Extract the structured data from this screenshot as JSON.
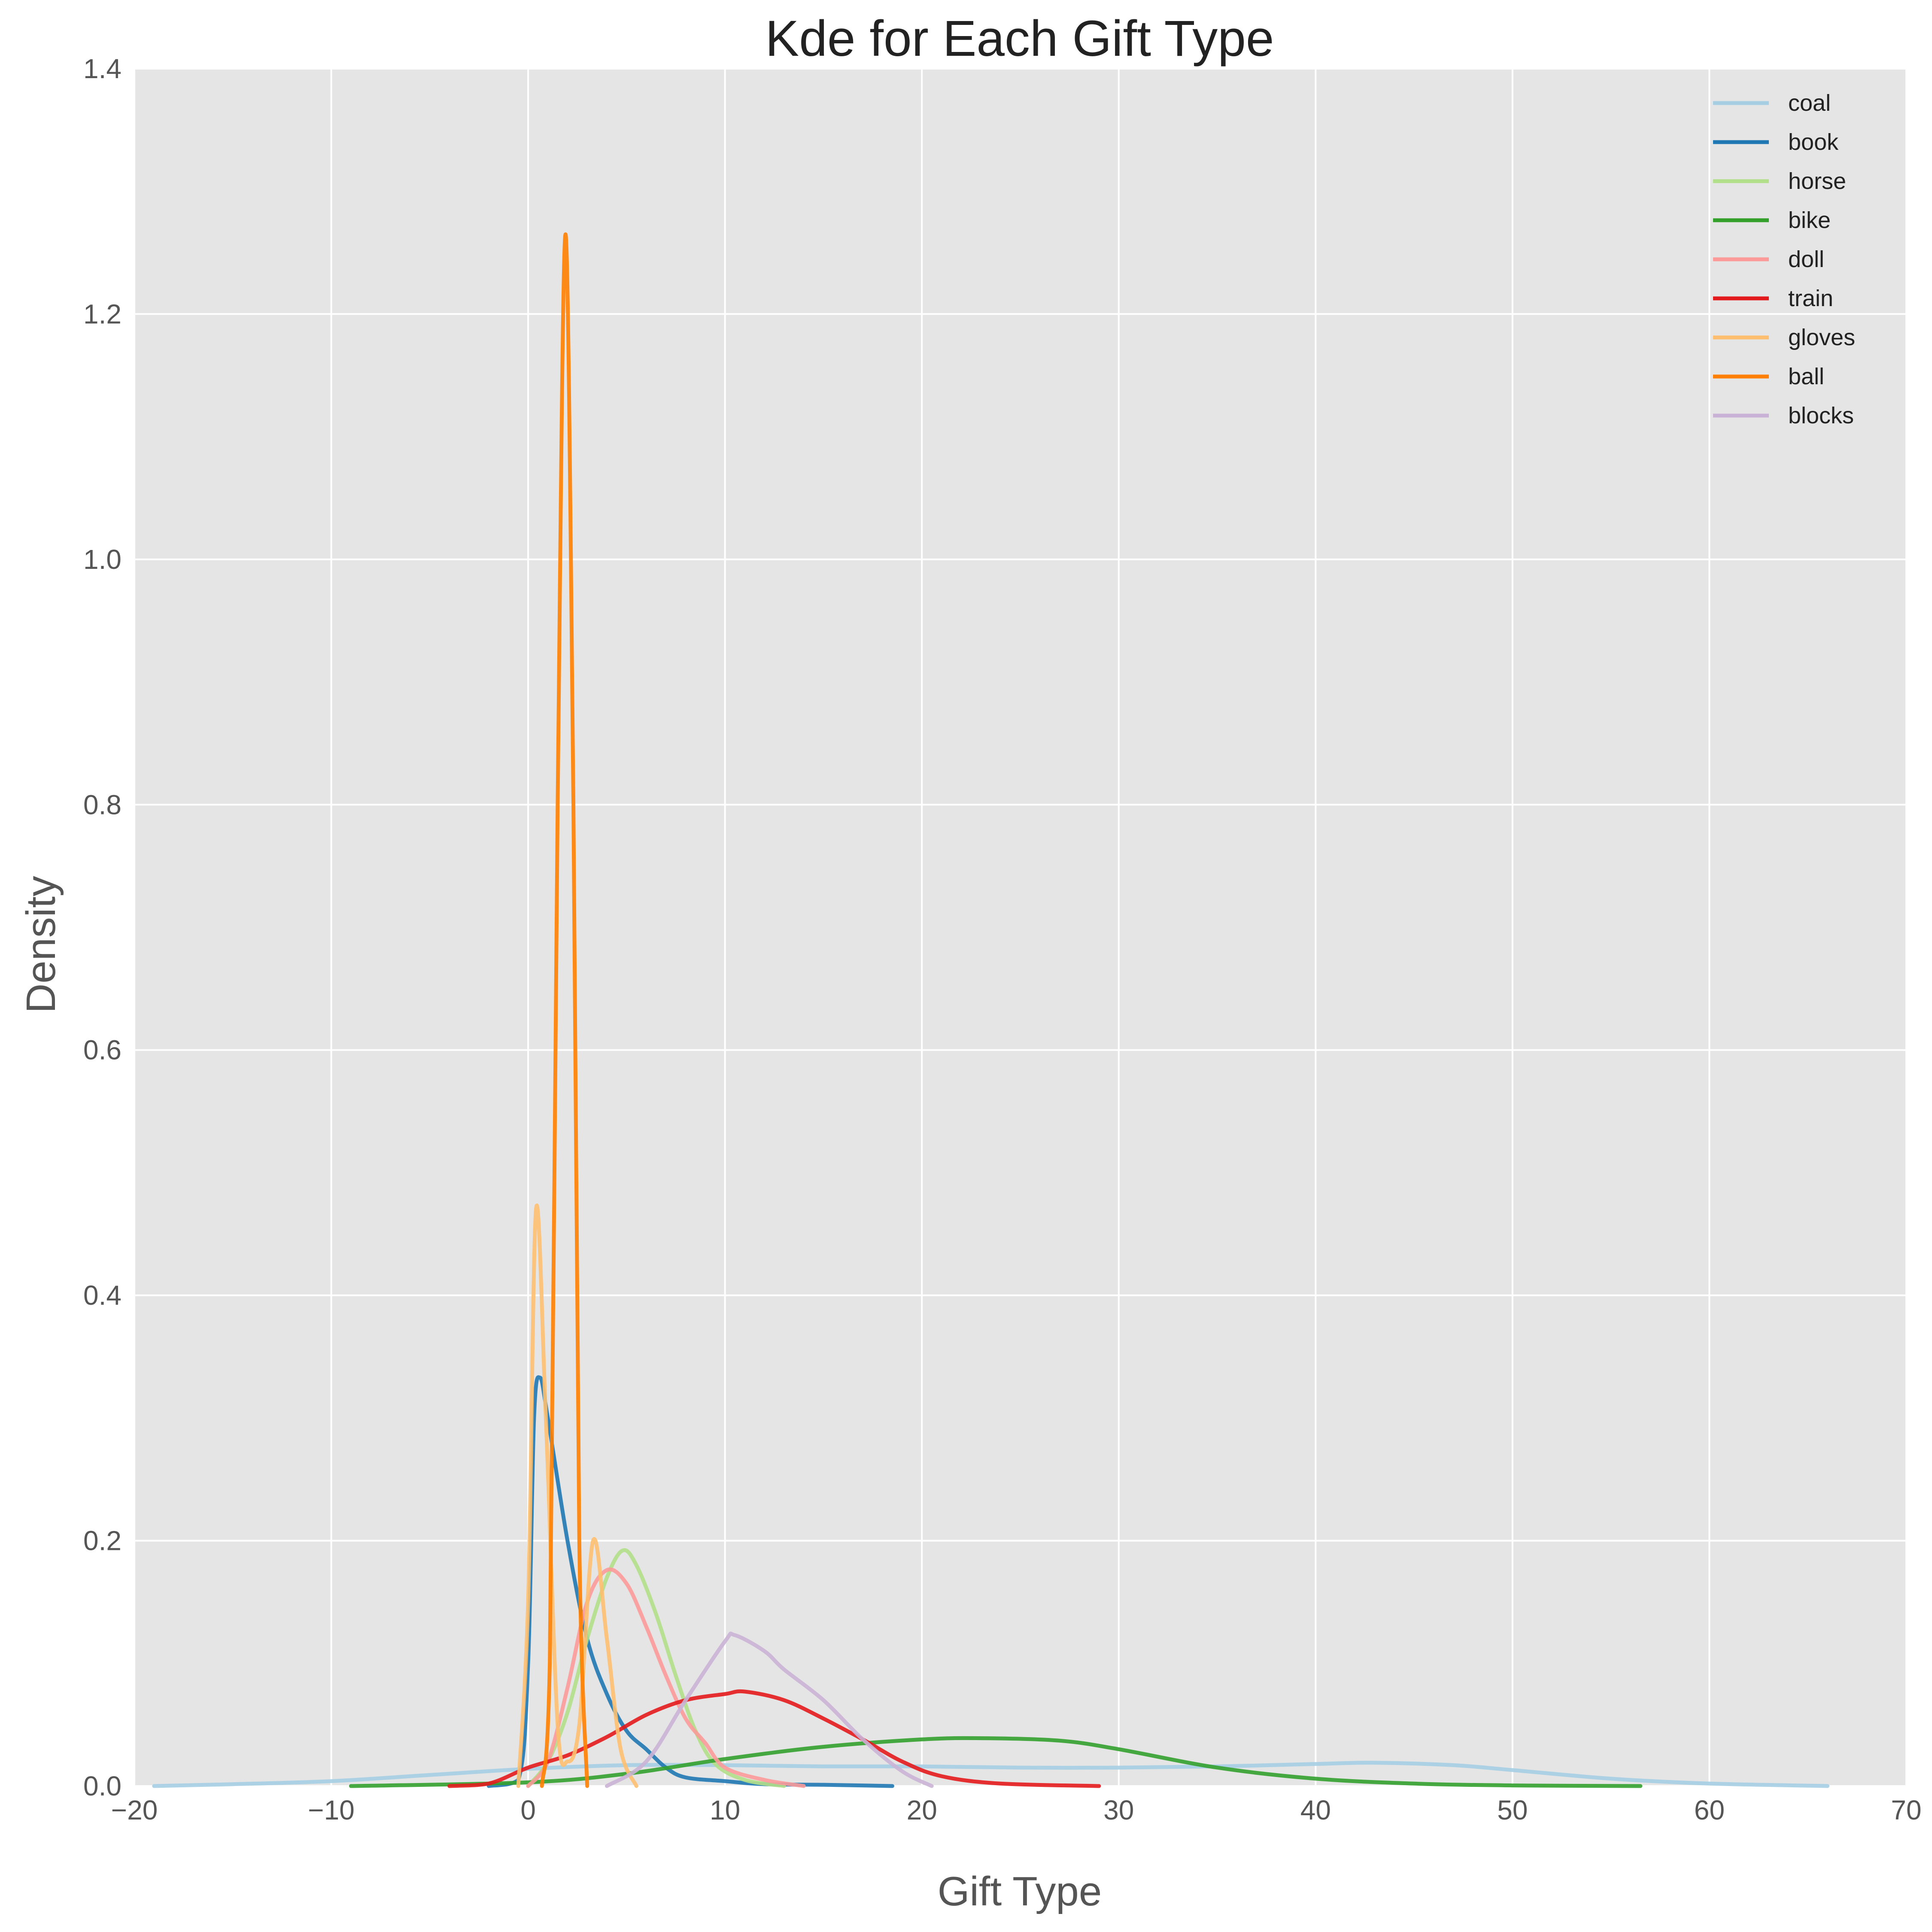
{
  "chart_data": {
    "type": "line",
    "title": "Kde for Each Gift Type",
    "xlabel": "Gift Type",
    "ylabel": "Density",
    "xlim": [
      -20,
      70
    ],
    "ylim": [
      0,
      1.4
    ],
    "x_ticks": [
      -20,
      -10,
      0,
      10,
      20,
      30,
      40,
      50,
      60,
      70
    ],
    "x_tick_labels": [
      "−20",
      "−10",
      "0",
      "10",
      "20",
      "30",
      "40",
      "50",
      "60",
      "70"
    ],
    "y_ticks": [
      0.0,
      0.2,
      0.4,
      0.6,
      0.8,
      1.0,
      1.2,
      1.4
    ],
    "y_tick_labels": [
      "0.0",
      "0.2",
      "0.4",
      "0.6",
      "0.8",
      "1.0",
      "1.2",
      "1.4"
    ],
    "grid": true,
    "legend_position": "top-right",
    "background": "#e5e5e5",
    "series": [
      {
        "name": "coal",
        "color": "#a6cee3",
        "points": [
          [
            -19,
            0.0
          ],
          [
            -15,
            0.0015
          ],
          [
            -10,
            0.004
          ],
          [
            -5,
            0.009
          ],
          [
            0,
            0.014
          ],
          [
            5,
            0.017
          ],
          [
            10,
            0.017
          ],
          [
            15,
            0.016
          ],
          [
            20,
            0.016
          ],
          [
            25,
            0.015
          ],
          [
            30,
            0.015
          ],
          [
            35,
            0.016
          ],
          [
            40,
            0.018
          ],
          [
            43,
            0.019
          ],
          [
            47,
            0.017
          ],
          [
            50,
            0.013
          ],
          [
            55,
            0.006
          ],
          [
            60,
            0.002
          ],
          [
            66,
            0.0
          ]
        ]
      },
      {
        "name": "book",
        "color": "#1f78b4",
        "points": [
          [
            -2,
            0.0
          ],
          [
            -0.5,
            0.005
          ],
          [
            0,
            0.1
          ],
          [
            0.3,
            0.3
          ],
          [
            0.6,
            0.333
          ],
          [
            1,
            0.3
          ],
          [
            2,
            0.2
          ],
          [
            3,
            0.12
          ],
          [
            4,
            0.075
          ],
          [
            5,
            0.045
          ],
          [
            6,
            0.03
          ],
          [
            7,
            0.015
          ],
          [
            8,
            0.007
          ],
          [
            10,
            0.004
          ],
          [
            12,
            0.0015
          ],
          [
            15,
            0.001
          ],
          [
            18.5,
            0.0
          ]
        ]
      },
      {
        "name": "horse",
        "color": "#b2df8a",
        "points": [
          [
            0,
            0.0
          ],
          [
            1,
            0.02
          ],
          [
            2,
            0.06
          ],
          [
            3,
            0.12
          ],
          [
            4,
            0.17
          ],
          [
            4.8,
            0.192
          ],
          [
            5.5,
            0.18
          ],
          [
            6.5,
            0.14
          ],
          [
            7.5,
            0.09
          ],
          [
            8.5,
            0.045
          ],
          [
            9.5,
            0.018
          ],
          [
            11,
            0.005
          ],
          [
            13,
            0.0
          ]
        ]
      },
      {
        "name": "bike",
        "color": "#33a02c",
        "points": [
          [
            -9,
            0.0
          ],
          [
            0,
            0.003
          ],
          [
            5,
            0.01
          ],
          [
            10,
            0.022
          ],
          [
            15,
            0.032
          ],
          [
            20,
            0.038
          ],
          [
            23,
            0.039
          ],
          [
            27,
            0.037
          ],
          [
            30,
            0.03
          ],
          [
            35,
            0.015
          ],
          [
            40,
            0.006
          ],
          [
            45,
            0.002
          ],
          [
            50,
            0.0005
          ],
          [
            56.5,
            0.0
          ]
        ]
      },
      {
        "name": "doll",
        "color": "#fb9a99",
        "points": [
          [
            0,
            0.0
          ],
          [
            1,
            0.02
          ],
          [
            2,
            0.08
          ],
          [
            3,
            0.15
          ],
          [
            4,
            0.176
          ],
          [
            5,
            0.165
          ],
          [
            6,
            0.13
          ],
          [
            7,
            0.09
          ],
          [
            8,
            0.055
          ],
          [
            9,
            0.035
          ],
          [
            10,
            0.015
          ],
          [
            12,
            0.005
          ],
          [
            14,
            0.0
          ]
        ]
      },
      {
        "name": "train",
        "color": "#e31a1c",
        "points": [
          [
            -4,
            0.0
          ],
          [
            -2,
            0.002
          ],
          [
            0,
            0.015
          ],
          [
            2,
            0.025
          ],
          [
            4,
            0.04
          ],
          [
            6,
            0.058
          ],
          [
            8,
            0.07
          ],
          [
            10,
            0.075
          ],
          [
            11,
            0.077
          ],
          [
            13,
            0.07
          ],
          [
            15,
            0.055
          ],
          [
            17,
            0.038
          ],
          [
            19,
            0.02
          ],
          [
            21,
            0.008
          ],
          [
            24,
            0.002
          ],
          [
            29,
            0.0
          ]
        ]
      },
      {
        "name": "gloves",
        "color": "#fdbf6f",
        "points": [
          [
            -0.5,
            0.0
          ],
          [
            0,
            0.15
          ],
          [
            0.4,
            0.47
          ],
          [
            0.9,
            0.3
          ],
          [
            1.5,
            0.05
          ],
          [
            2,
            0.02
          ],
          [
            2.6,
            0.05
          ],
          [
            3.3,
            0.2
          ],
          [
            4,
            0.12
          ],
          [
            4.7,
            0.03
          ],
          [
            5.5,
            0.0
          ]
        ]
      },
      {
        "name": "ball",
        "color": "#ff7f00",
        "points": [
          [
            0.7,
            0.0
          ],
          [
            1.1,
            0.1
          ],
          [
            1.5,
            0.8
          ],
          [
            1.9,
            1.265
          ],
          [
            2.3,
            0.8
          ],
          [
            2.6,
            0.2
          ],
          [
            3.0,
            0.0
          ]
        ]
      },
      {
        "name": "blocks",
        "color": "#cab2d6",
        "points": [
          [
            4,
            0.0
          ],
          [
            6,
            0.02
          ],
          [
            8,
            0.07
          ],
          [
            10,
            0.118
          ],
          [
            10.5,
            0.123
          ],
          [
            12,
            0.11
          ],
          [
            13,
            0.095
          ],
          [
            15,
            0.07
          ],
          [
            17,
            0.038
          ],
          [
            19,
            0.012
          ],
          [
            20.5,
            0.0
          ]
        ]
      }
    ]
  }
}
